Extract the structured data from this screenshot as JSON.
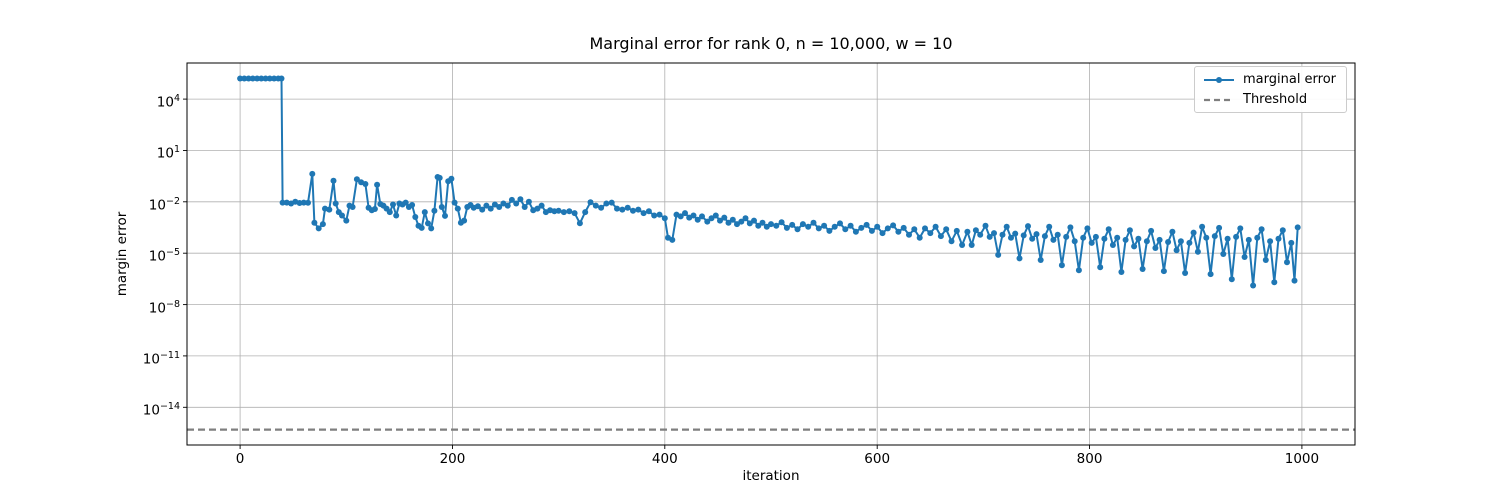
{
  "figure": {
    "title": "Marginal error for rank 0, n = 10,000, w = 10",
    "xlabel": "iteration",
    "ylabel": "margin error"
  },
  "legend": {
    "entries": [
      {
        "label": "marginal error"
      },
      {
        "label": "Threshold"
      }
    ]
  },
  "chart_data": {
    "type": "line",
    "title": "Marginal error for rank 0, n = 10,000, w = 10",
    "xlabel": "iteration",
    "ylabel": "margin error",
    "yscale": "log",
    "grid": true,
    "legend_position": "upper right",
    "xlim": [
      -50,
      1050
    ],
    "ylim": [
      6.3e-17,
      1280000.0
    ],
    "x_ticks": [
      0,
      200,
      400,
      600,
      800,
      1000
    ],
    "y_tick_exponents": [
      4,
      1,
      -2,
      -5,
      -8,
      -11,
      -14
    ],
    "threshold": {
      "label": "Threshold",
      "value": 5e-16,
      "color": "#7f7f7f",
      "style": "dashed"
    },
    "series": [
      {
        "name": "marginal error",
        "color": "#1f77b4",
        "marker": "o",
        "points": [
          [
            0,
            160000.0
          ],
          [
            4,
            160000.0
          ],
          [
            8,
            160000.0
          ],
          [
            12,
            160000.0
          ],
          [
            16,
            160000.0
          ],
          [
            20,
            160000.0
          ],
          [
            24,
            160000.0
          ],
          [
            28,
            160000.0
          ],
          [
            32,
            160000.0
          ],
          [
            36,
            160000.0
          ],
          [
            39,
            160000.0
          ],
          [
            40,
            0.009
          ],
          [
            44,
            0.009
          ],
          [
            48,
            0.008
          ],
          [
            52,
            0.01
          ],
          [
            56,
            0.0085
          ],
          [
            60,
            0.009
          ],
          [
            64,
            0.0088
          ],
          [
            68,
            0.43
          ],
          [
            70,
            0.0006
          ],
          [
            74,
            0.00028
          ],
          [
            78,
            0.0005
          ],
          [
            80,
            0.004
          ],
          [
            84,
            0.0035
          ],
          [
            88,
            0.17
          ],
          [
            90,
            0.008
          ],
          [
            93,
            0.0025
          ],
          [
            96,
            0.0016
          ],
          [
            100,
            0.0008
          ],
          [
            103,
            0.006
          ],
          [
            106,
            0.005
          ],
          [
            110,
            0.21
          ],
          [
            114,
            0.14
          ],
          [
            118,
            0.11
          ],
          [
            121,
            0.0045
          ],
          [
            124,
            0.0032
          ],
          [
            127,
            0.0038
          ],
          [
            129,
            0.1
          ],
          [
            132,
            0.0075
          ],
          [
            135,
            0.006
          ],
          [
            138,
            0.004
          ],
          [
            141,
            0.0025
          ],
          [
            144,
            0.007
          ],
          [
            147,
            0.0016
          ],
          [
            150,
            0.008
          ],
          [
            153,
            0.007
          ],
          [
            156,
            0.009
          ],
          [
            159,
            0.005
          ],
          [
            162,
            0.0065
          ],
          [
            165,
            0.0013
          ],
          [
            168,
            0.0004
          ],
          [
            171,
            0.0003
          ],
          [
            174,
            0.0025
          ],
          [
            177,
            0.00055
          ],
          [
            180,
            0.00028
          ],
          [
            183,
            0.003
          ],
          [
            186,
            0.28
          ],
          [
            188,
            0.25
          ],
          [
            190,
            0.005
          ],
          [
            193,
            0.0015
          ],
          [
            196,
            0.16
          ],
          [
            199,
            0.22
          ],
          [
            202,
            0.009
          ],
          [
            205,
            0.004
          ],
          [
            208,
            0.0006
          ],
          [
            211,
            0.0008
          ],
          [
            214,
            0.005
          ],
          [
            217,
            0.0065
          ],
          [
            220,
            0.0045
          ],
          [
            224,
            0.0055
          ],
          [
            228,
            0.0035
          ],
          [
            232,
            0.006
          ],
          [
            236,
            0.004
          ],
          [
            240,
            0.007
          ],
          [
            244,
            0.005
          ],
          [
            248,
            0.008
          ],
          [
            252,
            0.006
          ],
          [
            256,
            0.013
          ],
          [
            260,
            0.008
          ],
          [
            264,
            0.014
          ],
          [
            268,
            0.005
          ],
          [
            272,
            0.01
          ],
          [
            276,
            0.0032
          ],
          [
            280,
            0.004
          ],
          [
            284,
            0.006
          ],
          [
            288,
            0.0025
          ],
          [
            292,
            0.0032
          ],
          [
            296,
            0.0028
          ],
          [
            300,
            0.003
          ],
          [
            305,
            0.0025
          ],
          [
            310,
            0.0028
          ],
          [
            315,
            0.0022
          ],
          [
            320,
            0.00056
          ],
          [
            325,
            0.0025
          ],
          [
            330,
            0.0095
          ],
          [
            335,
            0.006
          ],
          [
            340,
            0.0045
          ],
          [
            345,
            0.008
          ],
          [
            350,
            0.009
          ],
          [
            355,
            0.004
          ],
          [
            360,
            0.0035
          ],
          [
            365,
            0.0045
          ],
          [
            370,
            0.003
          ],
          [
            375,
            0.0035
          ],
          [
            380,
            0.0022
          ],
          [
            385,
            0.0028
          ],
          [
            390,
            0.0016
          ],
          [
            395,
            0.0018
          ],
          [
            400,
            0.0011
          ],
          [
            403,
            8e-05
          ],
          [
            407,
            6e-05
          ],
          [
            411,
            0.0018
          ],
          [
            415,
            0.0014
          ],
          [
            419,
            0.0022
          ],
          [
            423,
            0.0012
          ],
          [
            427,
            0.0016
          ],
          [
            431,
            0.0009
          ],
          [
            435,
            0.0014
          ],
          [
            440,
            0.0007
          ],
          [
            444,
            0.0011
          ],
          [
            448,
            0.0016
          ],
          [
            452,
            0.0008
          ],
          [
            456,
            0.0012
          ],
          [
            460,
            0.0006
          ],
          [
            464,
            0.0009
          ],
          [
            468,
            0.0005
          ],
          [
            472,
            0.0007
          ],
          [
            476,
            0.0011
          ],
          [
            480,
            0.00055
          ],
          [
            484,
            0.0008
          ],
          [
            488,
            0.0004
          ],
          [
            492,
            0.0006
          ],
          [
            496,
            0.00035
          ],
          [
            500,
            0.0005
          ],
          [
            505,
            0.0004
          ],
          [
            510,
            0.00065
          ],
          [
            515,
            0.0003
          ],
          [
            520,
            0.00045
          ],
          [
            525,
            0.00025
          ],
          [
            530,
            0.0005
          ],
          [
            535,
            0.00035
          ],
          [
            540,
            0.0006
          ],
          [
            545,
            0.00028
          ],
          [
            550,
            0.0004
          ],
          [
            555,
            0.0002
          ],
          [
            560,
            0.00035
          ],
          [
            565,
            0.00055
          ],
          [
            570,
            0.00025
          ],
          [
            575,
            0.0004
          ],
          [
            580,
            0.00018
          ],
          [
            585,
            0.0003
          ],
          [
            590,
            0.00045
          ],
          [
            595,
            0.0002
          ],
          [
            600,
            0.00035
          ],
          [
            605,
            0.00015
          ],
          [
            610,
            0.00028
          ],
          [
            615,
            0.00042
          ],
          [
            620,
            0.00018
          ],
          [
            625,
            0.0003
          ],
          [
            630,
            0.00012
          ],
          [
            635,
            0.00025
          ],
          [
            640,
            8e-05
          ],
          [
            645,
            0.00028
          ],
          [
            650,
            0.00015
          ],
          [
            655,
            0.00035
          ],
          [
            660,
            0.0001
          ],
          [
            665,
            0.00025
          ],
          [
            670,
            5e-05
          ],
          [
            675,
            0.0002
          ],
          [
            680,
            3e-05
          ],
          [
            685,
            0.00018
          ],
          [
            689,
            3e-05
          ],
          [
            693,
            0.00022
          ],
          [
            697,
            0.00012
          ],
          [
            702,
            0.0004
          ],
          [
            706,
            9e-05
          ],
          [
            710,
            0.00015
          ],
          [
            714,
            8e-06
          ],
          [
            718,
            0.00012
          ],
          [
            722,
            0.00035
          ],
          [
            726,
            8e-05
          ],
          [
            730,
            0.00014
          ],
          [
            734,
            5e-06
          ],
          [
            738,
            0.00011
          ],
          [
            742,
            0.00038
          ],
          [
            746,
            7e-05
          ],
          [
            750,
            0.00013
          ],
          [
            754,
            4e-06
          ],
          [
            758,
            0.0001
          ],
          [
            762,
            0.00035
          ],
          [
            766,
            6e-05
          ],
          [
            770,
            0.00012
          ],
          [
            774,
            2e-06
          ],
          [
            778,
            9e-05
          ],
          [
            782,
            0.00032
          ],
          [
            786,
            5e-05
          ],
          [
            790,
            1e-06
          ],
          [
            794,
            8e-05
          ],
          [
            798,
            0.00028
          ],
          [
            802,
            4e-05
          ],
          [
            806,
            9e-05
          ],
          [
            810,
            1.5e-06
          ],
          [
            814,
            7e-05
          ],
          [
            818,
            0.00025
          ],
          [
            822,
            3e-05
          ],
          [
            826,
            8e-05
          ],
          [
            830,
            8e-07
          ],
          [
            834,
            6e-05
          ],
          [
            838,
            0.00022
          ],
          [
            842,
            2.5e-05
          ],
          [
            846,
            7e-05
          ],
          [
            850,
            1.2e-06
          ],
          [
            854,
            5e-05
          ],
          [
            858,
            0.0002
          ],
          [
            862,
            2e-05
          ],
          [
            866,
            6e-05
          ],
          [
            870,
            9e-07
          ],
          [
            874,
            4.5e-05
          ],
          [
            878,
            0.00018
          ],
          [
            882,
            1.5e-05
          ],
          [
            886,
            5e-05
          ],
          [
            890,
            7e-07
          ],
          [
            894,
            4e-05
          ],
          [
            898,
            0.00016
          ],
          [
            902,
            1.2e-05
          ],
          [
            906,
            0.00035
          ],
          [
            910,
            8e-05
          ],
          [
            914,
            6e-07
          ],
          [
            918,
            0.0001
          ],
          [
            922,
            0.0003
          ],
          [
            926,
            9e-06
          ],
          [
            930,
            7e-05
          ],
          [
            934,
            3e-07
          ],
          [
            938,
            9e-05
          ],
          [
            942,
            0.00028
          ],
          [
            946,
            6e-06
          ],
          [
            950,
            6e-05
          ],
          [
            954,
            1.3e-07
          ],
          [
            958,
            8e-05
          ],
          [
            962,
            0.00025
          ],
          [
            966,
            4e-06
          ],
          [
            970,
            5e-05
          ],
          [
            974,
            2e-07
          ],
          [
            978,
            7e-05
          ],
          [
            982,
            0.00022
          ],
          [
            986,
            3e-06
          ],
          [
            990,
            4e-05
          ],
          [
            993,
            2.5e-07
          ],
          [
            996,
            0.00032
          ]
        ]
      }
    ]
  }
}
